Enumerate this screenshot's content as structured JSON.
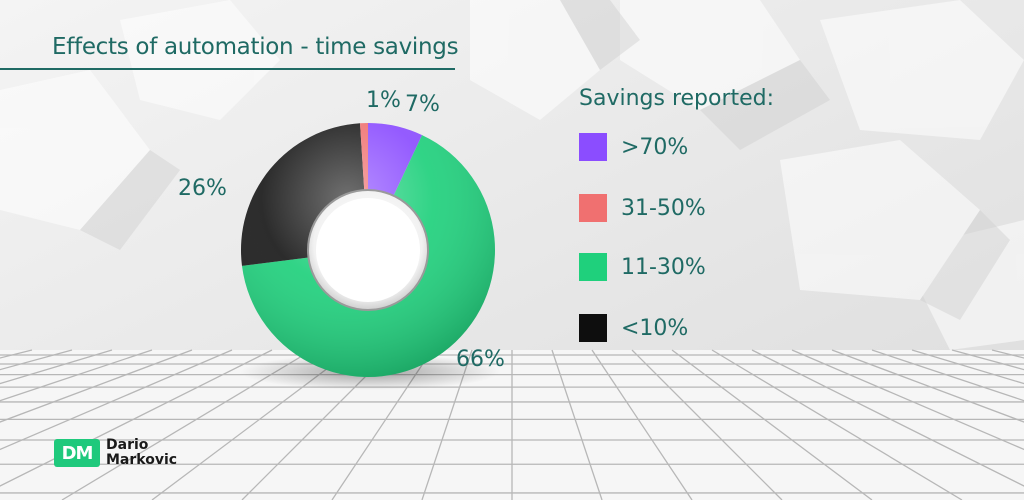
{
  "chart_data": {
    "type": "pie",
    "title": "Effects of automation - time savings",
    "legend_title": "Savings reported:",
    "legend_placement": "right",
    "slices": [
      {
        "label": ">70%",
        "value": 7,
        "display": "7%",
        "color": "#8b4dff"
      },
      {
        "label": "31-50%",
        "value": 1,
        "display": "1%",
        "color": "#f07070"
      },
      {
        "label": "11-30%",
        "value": 66,
        "display": "66%",
        "color": "#1fd07c"
      },
      {
        "label": "<10%",
        "value": 26,
        "display": "26%",
        "color": "#1a1a1a"
      }
    ]
  },
  "brand": {
    "mark": "DM",
    "name_line1": "Dario",
    "name_line2": "Markovic",
    "color": "#1fc97c"
  }
}
